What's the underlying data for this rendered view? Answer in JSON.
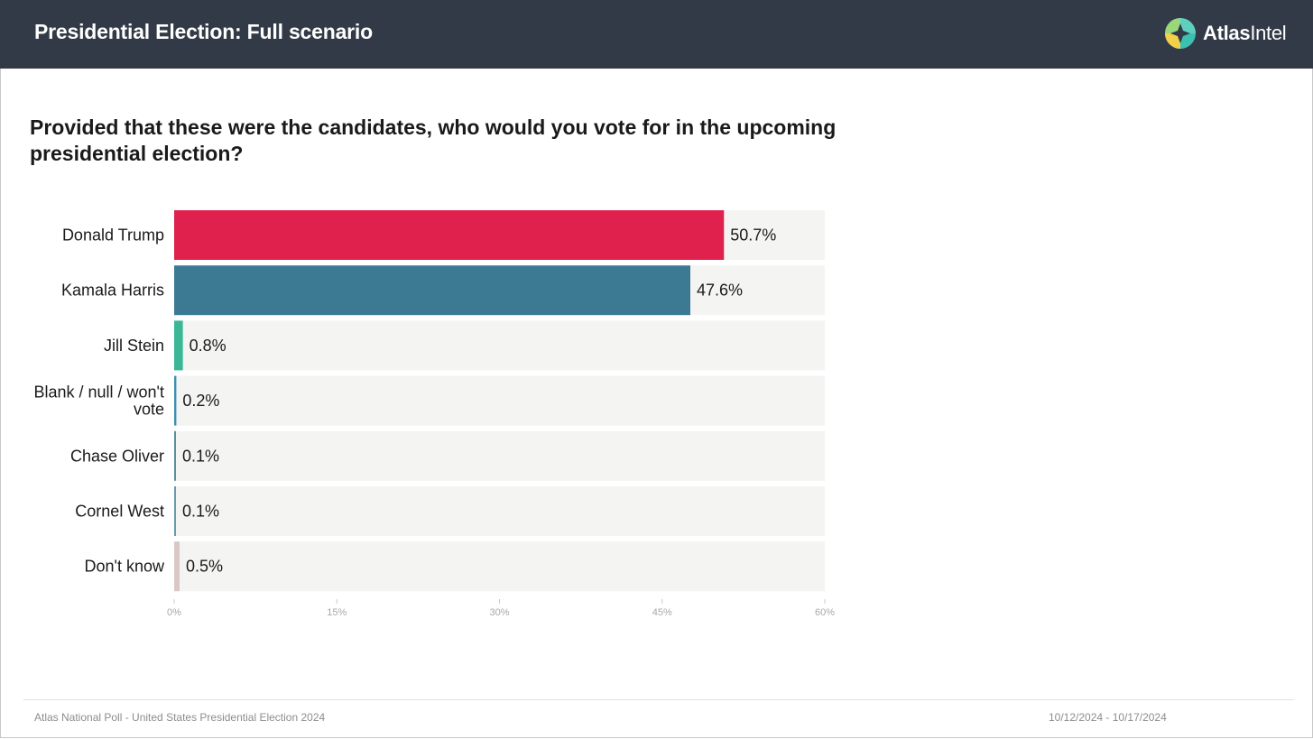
{
  "header": {
    "title": "Presidential Election: Full scenario",
    "logo": {
      "text_bold": "Atlas",
      "text_regular": "Intel",
      "icon": "atlas-compass-logo-icon"
    }
  },
  "question": "Provided that these were the candidates, who would you vote for in the upcoming presidential election?",
  "chart_data": {
    "type": "bar",
    "orientation": "horizontal",
    "categories": [
      "Donald Trump",
      "Kamala Harris",
      "Jill Stein",
      "Blank / null / won't vote",
      "Chase Oliver",
      "Cornel West",
      "Don't know"
    ],
    "category_lines": [
      [
        "Donald Trump"
      ],
      [
        "Kamala Harris"
      ],
      [
        "Jill Stein"
      ],
      [
        "Blank / null / won't",
        "vote"
      ],
      [
        "Chase Oliver"
      ],
      [
        "Cornel West"
      ],
      [
        "Don't know"
      ]
    ],
    "values": [
      50.7,
      47.6,
      0.8,
      0.2,
      0.1,
      0.1,
      0.5
    ],
    "value_labels": [
      "50.7%",
      "47.6%",
      "0.8%",
      "0.2%",
      "0.1%",
      "0.1%",
      "0.5%"
    ],
    "colors": [
      "#e0214d",
      "#3c7a94",
      "#3ab795",
      "#3c8fb0",
      "#5a8ea0",
      "#6a9ab0",
      "#d9c8c5"
    ],
    "xlim": [
      0,
      60
    ],
    "xticks": [
      0,
      15,
      30,
      45,
      60
    ],
    "xtick_labels": [
      "0%",
      "15%",
      "30%",
      "45%",
      "60%"
    ],
    "track_color": "#f4f4f3",
    "grid": false
  },
  "footer": {
    "source": "Atlas National Poll - United States Presidential Election 2024",
    "dates": "10/12/2024 - 10/17/2024"
  }
}
